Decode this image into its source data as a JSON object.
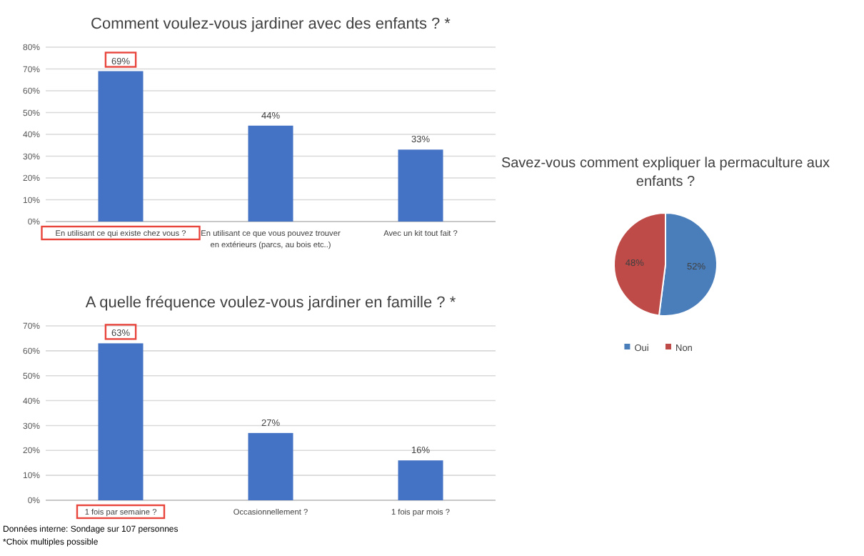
{
  "chart_data": [
    {
      "type": "bar",
      "title": "Comment voulez-vous jardiner avec des enfants ? *",
      "categories": [
        "En utilisant ce qui existe chez vous ?",
        "En utilisant ce que vous pouvez trouver en extérieurs (parcs, au bois etc..)",
        "Avec un kit tout fait ?"
      ],
      "values": [
        69,
        44,
        33
      ],
      "value_labels": [
        "69%",
        "44%",
        "33%"
      ],
      "color": "#4472c4",
      "ylim": [
        0,
        80
      ],
      "yticks": [
        {
          "value": 0,
          "label": "0%"
        },
        {
          "value": 10,
          "label": "10%"
        },
        {
          "value": 20,
          "label": "20%"
        },
        {
          "value": 30,
          "label": "30%"
        },
        {
          "value": 40,
          "label": "40%"
        },
        {
          "value": 50,
          "label": "50%"
        },
        {
          "value": 60,
          "label": "60%"
        },
        {
          "value": 70,
          "label": "70%"
        },
        {
          "value": 80,
          "label": "80%"
        }
      ],
      "grid": "y"
    },
    {
      "type": "bar",
      "title": "A quelle fréquence voulez-vous jardiner en famille ? *",
      "categories": [
        "1 fois par semaine ?",
        "Occasionnellement ?",
        "1 fois par mois ?"
      ],
      "values": [
        63,
        27,
        16
      ],
      "value_labels": [
        "63%",
        "27%",
        "16%"
      ],
      "color": "#4472c4",
      "ylim": [
        0,
        70
      ],
      "yticks": [
        {
          "value": 0,
          "label": "0%"
        },
        {
          "value": 10,
          "label": "10%"
        },
        {
          "value": 20,
          "label": "20%"
        },
        {
          "value": 30,
          "label": "30%"
        },
        {
          "value": 40,
          "label": "40%"
        },
        {
          "value": 50,
          "label": "50%"
        },
        {
          "value": 60,
          "label": "60%"
        },
        {
          "value": 70,
          "label": "70%"
        }
      ],
      "grid": "y",
      "annotations": [
        "Données interne: Sondage sur 107 personnes",
        "*Choix multiples possible"
      ]
    },
    {
      "type": "pie",
      "title": "Savez-vous comment expliquer la permaculture aux enfants ?",
      "categories": [
        "Oui",
        "Non"
      ],
      "values": [
        52,
        48
      ],
      "value_labels": [
        "52%",
        "48%"
      ],
      "colors": [
        "#4a7ebb",
        "#be4b48"
      ],
      "legend": "bottom"
    }
  ]
}
